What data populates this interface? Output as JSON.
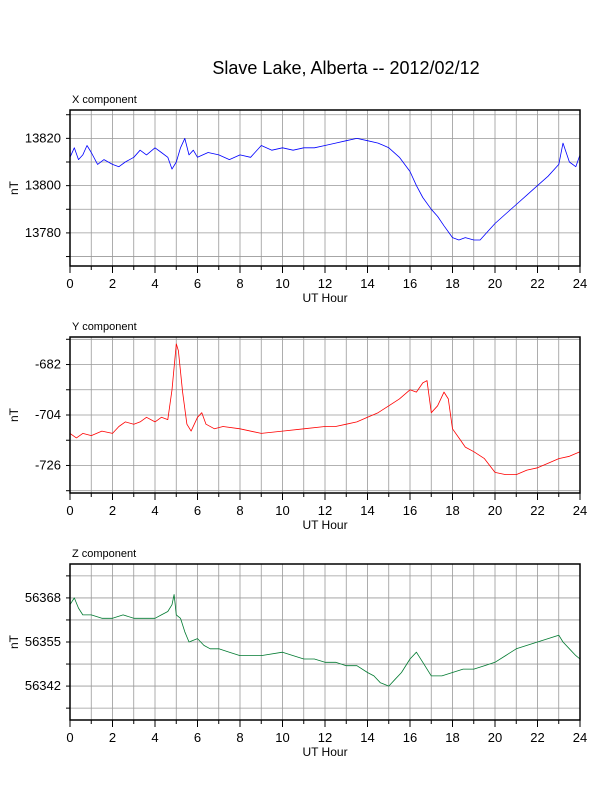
{
  "page": {
    "title": "Slave Lake, Alberta -- 2012/02/12"
  },
  "chart_data": [
    {
      "type": "line",
      "title": "X component",
      "xlabel": "UT Hour",
      "ylabel": "nT",
      "xlim": [
        0,
        24
      ],
      "ylim": [
        13766,
        13832
      ],
      "xticks": [
        0,
        2,
        4,
        6,
        8,
        10,
        12,
        14,
        16,
        18,
        20,
        22,
        24
      ],
      "yticks": [
        13780,
        13800,
        13820
      ],
      "grid": true,
      "color": "#0000ff",
      "series": [
        {
          "x": [
            0,
            0.2,
            0.4,
            0.6,
            0.8,
            1,
            1.3,
            1.6,
            2,
            2.3,
            2.6,
            3,
            3.3,
            3.6,
            4,
            4.3,
            4.6,
            4.8,
            5,
            5.2,
            5.4,
            5.6,
            5.8,
            6,
            6.5,
            7,
            7.5,
            8,
            8.5,
            9,
            9.5,
            10,
            10.5,
            11,
            11.5,
            12,
            12.5,
            13,
            13.5,
            14,
            14.5,
            15,
            15.5,
            16,
            16.3,
            16.6,
            17,
            17.3,
            17.6,
            18,
            18.3,
            18.6,
            19,
            19.3,
            19.6,
            20,
            20.5,
            21,
            21.5,
            22,
            22.5,
            23,
            23.2,
            23.5,
            23.8,
            24
          ],
          "y": [
            13812,
            13816,
            13811,
            13813,
            13817,
            13814,
            13809,
            13811,
            13809,
            13808,
            13810,
            13812,
            13815,
            13813,
            13816,
            13814,
            13812,
            13807,
            13810,
            13816,
            13820,
            13813,
            13815,
            13812,
            13814,
            13813,
            13811,
            13813,
            13812,
            13817,
            13815,
            13816,
            13815,
            13816,
            13816,
            13817,
            13818,
            13819,
            13820,
            13819,
            13818,
            13816,
            13812,
            13806,
            13800,
            13795,
            13790,
            13787,
            13783,
            13778,
            13777,
            13778,
            13777,
            13777,
            13780,
            13784,
            13788,
            13792,
            13796,
            13800,
            13804,
            13809,
            13818,
            13810,
            13808,
            13813
          ]
        }
      ]
    },
    {
      "type": "line",
      "title": "Y component",
      "xlabel": "UT Hour",
      "ylabel": "nT",
      "xlim": [
        0,
        24
      ],
      "ylim": [
        -738,
        -670
      ],
      "xticks": [
        0,
        2,
        4,
        6,
        8,
        10,
        12,
        14,
        16,
        18,
        20,
        22,
        24
      ],
      "yticks": [
        -682,
        -704,
        -726
      ],
      "grid": true,
      "color": "#ff0000",
      "series": [
        {
          "x": [
            0,
            0.3,
            0.6,
            1,
            1.5,
            2,
            2.3,
            2.6,
            3,
            3.3,
            3.6,
            4,
            4.3,
            4.6,
            4.8,
            5,
            5.1,
            5.3,
            5.5,
            5.7,
            6,
            6.2,
            6.4,
            6.8,
            7.2,
            8,
            9,
            10,
            11,
            12,
            12.5,
            13,
            13.5,
            14,
            14.5,
            15,
            15.5,
            16,
            16.3,
            16.6,
            16.8,
            17,
            17.3,
            17.6,
            17.8,
            18,
            18.3,
            18.6,
            19,
            19.5,
            20,
            20.5,
            21,
            21.5,
            22,
            22.5,
            23,
            23.5,
            24
          ],
          "y": [
            -712,
            -714,
            -712,
            -713,
            -711,
            -712,
            -709,
            -707,
            -708,
            -707,
            -705,
            -707,
            -705,
            -706,
            -693,
            -673,
            -676,
            -694,
            -708,
            -711,
            -705,
            -703,
            -708,
            -710,
            -709,
            -710,
            -712,
            -711,
            -710,
            -709,
            -709,
            -708,
            -707,
            -705,
            -703,
            -700,
            -697,
            -693,
            -694,
            -690,
            -689,
            -703,
            -700,
            -694,
            -697,
            -710,
            -714,
            -718,
            -720,
            -723,
            -729,
            -730,
            -730,
            -728,
            -727,
            -725,
            -723,
            -722,
            -720
          ]
        }
      ]
    },
    {
      "type": "line",
      "title": "Z component",
      "xlabel": "UT Hour",
      "ylabel": "nT",
      "xlim": [
        0,
        24
      ],
      "ylim": [
        56332,
        56378
      ],
      "xticks": [
        0,
        2,
        4,
        6,
        8,
        10,
        12,
        14,
        16,
        18,
        20,
        22,
        24
      ],
      "yticks": [
        56342,
        56355,
        56368
      ],
      "grid": true,
      "color": "#007a30",
      "series": [
        {
          "x": [
            0,
            0.2,
            0.4,
            0.6,
            1,
            1.5,
            2,
            2.5,
            3,
            3.5,
            4,
            4.3,
            4.6,
            4.8,
            4.9,
            5,
            5.2,
            5.4,
            5.6,
            6,
            6.3,
            6.6,
            7,
            7.5,
            8,
            9,
            10,
            10.5,
            11,
            11.5,
            12,
            12.5,
            13,
            13.5,
            14,
            14.3,
            14.6,
            15,
            15.3,
            15.6,
            16,
            16.3,
            16.6,
            17,
            17.5,
            18,
            18.5,
            19,
            19.5,
            20,
            20.5,
            21,
            21.5,
            22,
            22.5,
            23,
            23.2,
            23.5,
            23.8,
            24
          ],
          "y": [
            56366,
            56368,
            56365,
            56363,
            56363,
            56362,
            56362,
            56363,
            56362,
            56362,
            56362,
            56363,
            56364,
            56366,
            56369,
            56363,
            56362,
            56358,
            56355,
            56356,
            56354,
            56353,
            56353,
            56352,
            56351,
            56351,
            56352,
            56351,
            56350,
            56350,
            56349,
            56349,
            56348,
            56348,
            56346,
            56345,
            56343,
            56342,
            56344,
            56346,
            56350,
            56352,
            56349,
            56345,
            56345,
            56346,
            56347,
            56347,
            56348,
            56349,
            56351,
            56353,
            56354,
            56355,
            56356,
            56357,
            56355,
            56353,
            56351,
            56350
          ]
        }
      ]
    }
  ]
}
